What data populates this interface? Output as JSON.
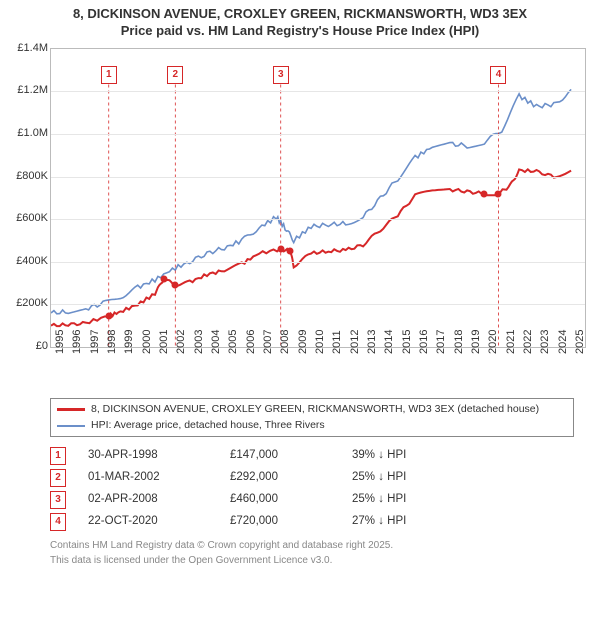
{
  "title_line1": "8, DICKINSON AVENUE, CROXLEY GREEN, RICKMANSWORTH, WD3 3EX",
  "title_line2": "Price paid vs. HM Land Registry's House Price Index (HPI)",
  "chart": {
    "type": "line",
    "background_color": "#ffffff",
    "grid_color": "#e6e6e6",
    "axis_color": "#bbbbbb",
    "ylim": [
      0,
      1400000
    ],
    "ytick_step": 200000,
    "yticks": [
      "£0",
      "£200K",
      "£400K",
      "£600K",
      "£800K",
      "£1.0M",
      "£1.2M",
      "£1.4M"
    ],
    "xlim": [
      1995,
      2025.8
    ],
    "xticks": [
      1995,
      1996,
      1997,
      1998,
      1999,
      2000,
      2001,
      2002,
      2003,
      2004,
      2005,
      2006,
      2007,
      2008,
      2009,
      2010,
      2011,
      2012,
      2013,
      2014,
      2015,
      2016,
      2017,
      2018,
      2019,
      2020,
      2021,
      2022,
      2023,
      2024,
      2025
    ],
    "tick_fontsize": 11,
    "title_fontsize": 13,
    "series": [
      {
        "name": "property",
        "color": "#d62728",
        "line_width": 2,
        "points": [
          [
            1995,
            100000
          ],
          [
            1996,
            105000
          ],
          [
            1997,
            112000
          ],
          [
            1998.33,
            147000
          ],
          [
            1999,
            165000
          ],
          [
            2000,
            200000
          ],
          [
            2001,
            250000
          ],
          [
            2001.5,
            320000
          ],
          [
            2002.17,
            292000
          ],
          [
            2003,
            305000
          ],
          [
            2004,
            340000
          ],
          [
            2005,
            360000
          ],
          [
            2006,
            390000
          ],
          [
            2007,
            440000
          ],
          [
            2008.25,
            460000
          ],
          [
            2008.8,
            450000
          ],
          [
            2009,
            380000
          ],
          [
            2010,
            440000
          ],
          [
            2011,
            450000
          ],
          [
            2012,
            455000
          ],
          [
            2013,
            480000
          ],
          [
            2014,
            550000
          ],
          [
            2015,
            620000
          ],
          [
            2016,
            710000
          ],
          [
            2017,
            740000
          ],
          [
            2018,
            740000
          ],
          [
            2019,
            730000
          ],
          [
            2020,
            720000
          ],
          [
            2020.81,
            720000
          ],
          [
            2021.5,
            760000
          ],
          [
            2022,
            830000
          ],
          [
            2023,
            825000
          ],
          [
            2024,
            800000
          ],
          [
            2025,
            830000
          ]
        ],
        "markers": [
          [
            1998.33,
            147000
          ],
          [
            2001.5,
            320000
          ],
          [
            2002.17,
            292000
          ],
          [
            2008.25,
            460000
          ],
          [
            2008.8,
            450000
          ],
          [
            2020,
            720000
          ],
          [
            2020.81,
            720000
          ]
        ]
      },
      {
        "name": "hpi",
        "color": "#6b8fc9",
        "line_width": 1.6,
        "points": [
          [
            1995,
            160000
          ],
          [
            1996,
            165000
          ],
          [
            1997,
            180000
          ],
          [
            1998,
            205000
          ],
          [
            1999,
            235000
          ],
          [
            2000,
            280000
          ],
          [
            2001,
            315000
          ],
          [
            2002,
            365000
          ],
          [
            2003,
            400000
          ],
          [
            2004,
            440000
          ],
          [
            2005,
            465000
          ],
          [
            2006,
            500000
          ],
          [
            2007,
            560000
          ],
          [
            2008,
            610000
          ],
          [
            2008.5,
            560000
          ],
          [
            2009,
            500000
          ],
          [
            2010,
            565000
          ],
          [
            2011,
            575000
          ],
          [
            2012,
            580000
          ],
          [
            2013,
            610000
          ],
          [
            2014,
            700000
          ],
          [
            2015,
            790000
          ],
          [
            2016,
            890000
          ],
          [
            2017,
            940000
          ],
          [
            2018,
            955000
          ],
          [
            2019,
            945000
          ],
          [
            2020,
            960000
          ],
          [
            2021,
            1020000
          ],
          [
            2022,
            1180000
          ],
          [
            2023,
            1130000
          ],
          [
            2024,
            1140000
          ],
          [
            2025,
            1200000
          ]
        ]
      }
    ],
    "sale_flags": [
      {
        "n": "1",
        "x": 1998.33,
        "y_top": 1280000
      },
      {
        "n": "2",
        "x": 2002.17,
        "y_top": 1280000
      },
      {
        "n": "3",
        "x": 2008.25,
        "y_top": 1280000
      },
      {
        "n": "4",
        "x": 2020.81,
        "y_top": 1280000
      }
    ]
  },
  "legend": {
    "series1": {
      "color": "#d62728",
      "label": "8, DICKINSON AVENUE, CROXLEY GREEN, RICKMANSWORTH, WD3 3EX (detached house)"
    },
    "series2": {
      "color": "#6b8fc9",
      "label": "HPI: Average price, detached house, Three Rivers"
    }
  },
  "sales": [
    {
      "n": "1",
      "date": "30-APR-1998",
      "price": "£147,000",
      "diff": "39% ↓ HPI"
    },
    {
      "n": "2",
      "date": "01-MAR-2002",
      "price": "£292,000",
      "diff": "25% ↓ HPI"
    },
    {
      "n": "3",
      "date": "02-APR-2008",
      "price": "£460,000",
      "diff": "25% ↓ HPI"
    },
    {
      "n": "4",
      "date": "22-OCT-2020",
      "price": "£720,000",
      "diff": "27% ↓ HPI"
    }
  ],
  "footer1": "Contains HM Land Registry data © Crown copyright and database right 2025.",
  "footer2": "This data is licensed under the Open Government Licence v3.0."
}
